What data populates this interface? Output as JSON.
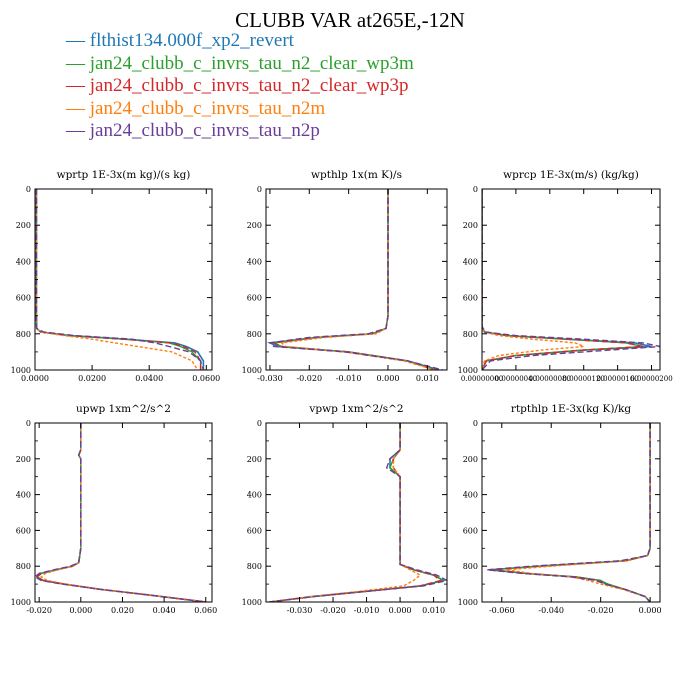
{
  "title": "CLUBB VAR at265E,-12N",
  "legend": [
    {
      "label": "flthist134.000f_xp2_revert",
      "color": "#1f77b4"
    },
    {
      "label": "jan24_clubb_c_invrs_tau_n2_clear_wp3m",
      "color": "#2ca02c"
    },
    {
      "label": "jan24_clubb_c_invrs_tau_n2_clear_wp3p",
      "color": "#d62728"
    },
    {
      "label": "jan24_clubb_c_invrs_tau_n2m",
      "color": "#ff7f0e"
    },
    {
      "label": "jan24_clubb_c_invrs_tau_n2p",
      "color": "#6a3d9a"
    }
  ],
  "chart_data": [
    {
      "type": "line",
      "title": "wprtp  1E-3x(m kg)/(s kg)",
      "xlim": [
        0,
        0.062
      ],
      "ylim": [
        1000,
        0
      ],
      "xticks": [
        0,
        0.02,
        0.04,
        0.06
      ],
      "xticklabels": [
        "0.0000",
        "0.0200",
        "0.0400",
        "0.0600"
      ],
      "yticks": [
        0,
        200,
        400,
        600,
        800,
        1000
      ],
      "y": [
        0,
        100,
        200,
        300,
        400,
        500,
        600,
        700,
        770,
        790,
        810,
        830,
        850,
        870,
        900,
        950,
        1000
      ],
      "series": [
        {
          "x": [
            0.0005,
            0.0005,
            0.0005,
            0.0005,
            0.0005,
            0.0005,
            0.0005,
            0.0005,
            0.0006,
            0.002,
            0.012,
            0.032,
            0.049,
            0.053,
            0.057,
            0.059,
            0.059
          ]
        },
        {
          "x": [
            0.0005,
            0.0005,
            0.0005,
            0.0005,
            0.0005,
            0.0005,
            0.0005,
            0.0005,
            0.0006,
            0.002,
            0.012,
            0.031,
            0.047,
            0.051,
            0.055,
            0.058,
            0.058
          ]
        },
        {
          "x": [
            0.0005,
            0.0005,
            0.0005,
            0.0005,
            0.0005,
            0.0005,
            0.0005,
            0.0005,
            0.0006,
            0.002,
            0.012,
            0.031,
            0.048,
            0.052,
            0.056,
            0.058,
            0.058
          ]
        },
        {
          "x": [
            0.0005,
            0.0005,
            0.0005,
            0.0005,
            0.0005,
            0.0005,
            0.0005,
            0.0005,
            0.0006,
            0.002,
            0.01,
            0.02,
            0.028,
            0.036,
            0.048,
            0.055,
            0.057
          ]
        },
        {
          "x": [
            0.0005,
            0.0005,
            0.0005,
            0.0005,
            0.0005,
            0.0005,
            0.0005,
            0.0005,
            0.0006,
            0.003,
            0.014,
            0.034,
            0.042,
            0.047,
            0.054,
            0.058,
            0.059
          ]
        }
      ]
    },
    {
      "type": "line",
      "title": "wpthlp  1x(m K)/s",
      "xlim": [
        -0.031,
        0.015
      ],
      "ylim": [
        1000,
        0
      ],
      "xticks": [
        -0.03,
        -0.02,
        -0.01,
        0,
        0.01
      ],
      "xticklabels": [
        "-0.030",
        "-0.020",
        "-0.010",
        "0.000",
        "0.010"
      ],
      "yticks": [
        0,
        200,
        400,
        600,
        800,
        1000
      ],
      "y": [
        0,
        100,
        200,
        300,
        400,
        500,
        600,
        700,
        770,
        800,
        820,
        850,
        870,
        900,
        950,
        1000
      ],
      "series": [
        {
          "x": [
            0,
            0,
            0,
            0,
            0,
            0,
            0,
            0,
            -0.0005,
            -0.004,
            -0.018,
            -0.03,
            -0.028,
            -0.01,
            0.005,
            0.013
          ]
        },
        {
          "x": [
            0,
            0,
            0,
            0,
            0,
            0,
            0,
            0,
            -0.0005,
            -0.004,
            -0.018,
            -0.029,
            -0.027,
            -0.01,
            0.005,
            0.012
          ]
        },
        {
          "x": [
            0,
            0,
            0,
            0,
            0,
            0,
            0,
            0,
            -0.0005,
            -0.004,
            -0.018,
            -0.029,
            -0.027,
            -0.01,
            0.005,
            0.012
          ]
        },
        {
          "x": [
            0,
            0,
            0,
            0,
            0,
            0,
            0,
            0,
            -0.0005,
            -0.003,
            -0.016,
            -0.027,
            -0.026,
            -0.011,
            0.004,
            0.012
          ]
        },
        {
          "x": [
            0,
            0,
            0,
            0,
            0,
            0,
            0,
            0,
            -0.0005,
            -0.005,
            -0.02,
            -0.03,
            -0.029,
            -0.011,
            0.005,
            0.014
          ]
        }
      ]
    },
    {
      "type": "line",
      "title": "wprcp  1E-3x(m/s) (kg/kg)",
      "xlim": [
        0,
        2.1e-07
      ],
      "ylim": [
        1000,
        0
      ],
      "xticks": [
        0,
        4e-08,
        8e-08,
        1.2e-07,
        1.6e-07,
        2e-07
      ],
      "xticklabels": [
        "0.00000000",
        "0.00000040",
        "0.00000080",
        "0.00000120",
        "0.00000160",
        "0.00000200"
      ],
      "yticks": [
        0,
        200,
        400,
        600,
        800,
        1000
      ],
      "y": [
        0,
        200,
        400,
        600,
        700,
        760,
        790,
        810,
        830,
        850,
        870,
        890,
        920,
        950,
        1000
      ],
      "series": [
        {
          "x": [
            0,
            0,
            0,
            0,
            0,
            0,
            3e-09,
            3e-08,
            1e-07,
            1.8e-07,
            2e-07,
            1.2e-07,
            4e-08,
            5e-09,
            0
          ]
        },
        {
          "x": [
            0,
            0,
            0,
            0,
            0,
            0,
            3e-09,
            3e-08,
            1e-07,
            1.7e-07,
            1.9e-07,
            1.2e-07,
            4e-08,
            5e-09,
            0
          ]
        },
        {
          "x": [
            0,
            0,
            0,
            0,
            0,
            0,
            3e-09,
            3e-08,
            1e-07,
            1.7e-07,
            1.9e-07,
            1.2e-07,
            4e-08,
            5e-09,
            0
          ]
        },
        {
          "x": [
            0,
            0,
            0,
            0,
            0,
            0,
            2e-09,
            2e-08,
            6e-08,
            1.1e-07,
            1.2e-07,
            7e-08,
            2e-08,
            3e-09,
            0
          ]
        },
        {
          "x": [
            0,
            0,
            0,
            0,
            0,
            0,
            4e-09,
            4e-08,
            1.2e-07,
            1.9e-07,
            2.1e-07,
            1.5e-07,
            6e-08,
            1e-08,
            0
          ]
        }
      ]
    },
    {
      "type": "line",
      "title": "upwp  1xm^2/s^2",
      "xlim": [
        -0.022,
        0.063
      ],
      "ylim": [
        1000,
        0
      ],
      "xticks": [
        -0.02,
        0,
        0.02,
        0.04,
        0.06
      ],
      "xticklabels": [
        "-0.020",
        "0.000",
        "0.020",
        "0.040",
        "0.060"
      ],
      "yticks": [
        0,
        200,
        400,
        600,
        800,
        1000
      ],
      "y": [
        0,
        100,
        150,
        180,
        200,
        250,
        300,
        400,
        500,
        600,
        700,
        780,
        800,
        820,
        840,
        860,
        880,
        900,
        930,
        960,
        1000
      ],
      "series": [
        {
          "x": [
            0,
            0,
            0,
            -0.001,
            0,
            0,
            0,
            0,
            0,
            0,
            0,
            -0.001,
            -0.004,
            -0.012,
            -0.019,
            -0.021,
            -0.018,
            -0.008,
            0.01,
            0.032,
            0.06
          ]
        },
        {
          "x": [
            0,
            0,
            0,
            -0.001,
            0,
            0,
            0,
            0,
            0,
            0,
            0,
            -0.001,
            -0.004,
            -0.012,
            -0.019,
            -0.021,
            -0.018,
            -0.008,
            0.01,
            0.032,
            0.06
          ]
        },
        {
          "x": [
            0,
            0,
            0,
            -0.001,
            0,
            0,
            0,
            0,
            0,
            0,
            0,
            -0.001,
            -0.004,
            -0.012,
            -0.019,
            -0.021,
            -0.018,
            -0.008,
            0.01,
            0.032,
            0.06
          ]
        },
        {
          "x": [
            0,
            0,
            0,
            -0.001,
            0,
            0,
            0,
            0,
            0,
            0,
            0,
            -0.001,
            -0.004,
            -0.011,
            -0.017,
            -0.019,
            -0.016,
            -0.007,
            0.01,
            0.032,
            0.06
          ]
        },
        {
          "x": [
            0,
            0,
            0,
            -0.001,
            0,
            0,
            0,
            0,
            0,
            0,
            0,
            -0.001,
            -0.005,
            -0.013,
            -0.02,
            -0.022,
            -0.019,
            -0.009,
            0.01,
            0.032,
            0.06
          ]
        }
      ]
    },
    {
      "type": "line",
      "title": "vpwp  1xm^2/s^2",
      "xlim": [
        -0.04,
        0.014
      ],
      "ylim": [
        1000,
        0
      ],
      "xticks": [
        -0.03,
        -0.02,
        -0.01,
        0,
        0.01
      ],
      "xticklabels": [
        "-0.030",
        "-0.020",
        "-0.010",
        "0.000",
        "0.010"
      ],
      "yticks": [
        0,
        200,
        400,
        600,
        800,
        1000
      ],
      "y": [
        0,
        100,
        150,
        200,
        250,
        300,
        400,
        500,
        600,
        700,
        790,
        820,
        850,
        880,
        910,
        940,
        970,
        1000
      ],
      "series": [
        {
          "x": [
            0,
            0,
            0,
            -0.003,
            -0.003,
            0,
            0,
            0,
            0,
            0,
            0,
            0.004,
            0.01,
            0.013,
            0.006,
            -0.01,
            -0.026,
            -0.039
          ]
        },
        {
          "x": [
            0,
            0,
            0,
            -0.002,
            -0.003,
            0,
            0,
            0,
            0,
            0,
            0,
            0.004,
            0.01,
            0.013,
            0.006,
            -0.01,
            -0.026,
            -0.039
          ]
        },
        {
          "x": [
            0,
            0,
            0,
            -0.002,
            -0.002,
            0,
            0,
            0,
            0,
            0,
            0,
            0.004,
            0.01,
            0.012,
            0.006,
            -0.01,
            -0.026,
            -0.039
          ]
        },
        {
          "x": [
            0,
            0,
            0,
            -0.002,
            -0.002,
            0,
            0,
            0,
            0,
            0,
            0,
            0.003,
            0.006,
            0.004,
            0.001,
            -0.012,
            -0.027,
            -0.039
          ]
        },
        {
          "x": [
            0,
            0,
            0,
            -0.003,
            -0.004,
            0,
            0,
            0,
            0,
            0,
            0,
            0.005,
            0.011,
            0.014,
            0.007,
            -0.01,
            -0.026,
            -0.039
          ]
        }
      ]
    },
    {
      "type": "line",
      "title": "rtpthlp  1E-3x(kg K)/kg",
      "xlim": [
        -0.068,
        0.004
      ],
      "ylim": [
        1000,
        0
      ],
      "xticks": [
        -0.06,
        -0.04,
        -0.02,
        0
      ],
      "xticklabels": [
        "-0.060",
        "-0.040",
        "-0.020",
        "0.000"
      ],
      "yticks": [
        0,
        200,
        400,
        600,
        800,
        1000
      ],
      "y": [
        0,
        200,
        400,
        600,
        700,
        740,
        770,
        800,
        820,
        840,
        860,
        880,
        900,
        930,
        970,
        1000
      ],
      "series": [
        {
          "x": [
            0,
            0,
            0,
            0,
            0,
            -0.001,
            -0.01,
            -0.045,
            -0.065,
            -0.05,
            -0.03,
            -0.02,
            -0.018,
            -0.01,
            -0.002,
            0
          ]
        },
        {
          "x": [
            0,
            0,
            0,
            0,
            0,
            -0.001,
            -0.01,
            -0.045,
            -0.064,
            -0.05,
            -0.03,
            -0.02,
            -0.017,
            -0.01,
            -0.002,
            0
          ]
        },
        {
          "x": [
            0,
            0,
            0,
            0,
            0,
            -0.001,
            -0.01,
            -0.045,
            -0.064,
            -0.05,
            -0.03,
            -0.021,
            -0.018,
            -0.01,
            -0.002,
            0
          ]
        },
        {
          "x": [
            0,
            0,
            0,
            0,
            0,
            -0.001,
            -0.009,
            -0.04,
            -0.058,
            -0.048,
            -0.032,
            -0.025,
            -0.02,
            -0.011,
            -0.002,
            0
          ]
        },
        {
          "x": [
            0,
            0,
            0,
            0,
            0,
            -0.001,
            -0.012,
            -0.048,
            -0.066,
            -0.052,
            -0.032,
            -0.022,
            -0.018,
            -0.01,
            -0.002,
            0
          ]
        }
      ]
    }
  ]
}
